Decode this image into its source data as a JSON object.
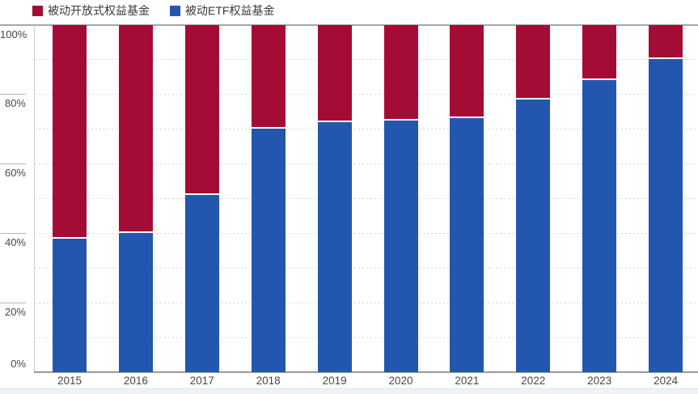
{
  "legend": {
    "items": [
      {
        "id": "open",
        "label": "被动开放式权益基金",
        "color": "#A50C35"
      },
      {
        "id": "etf",
        "label": "被动ETF权益基金",
        "color": "#2356AE"
      }
    ]
  },
  "y_axis": {
    "ticks": [
      {
        "label": "100%",
        "value": 100
      },
      {
        "label": "80%",
        "value": 80
      },
      {
        "label": "60%",
        "value": 60
      },
      {
        "label": "40%",
        "value": 40
      },
      {
        "label": "20%",
        "value": 20
      },
      {
        "label": "0%",
        "value": 0
      }
    ]
  },
  "chart_data": {
    "type": "bar",
    "stacked": true,
    "stack_total": 100,
    "title": "",
    "xlabel": "",
    "ylabel": "",
    "ylim": [
      0,
      100
    ],
    "grid": "dotted horizontal lines every 10%",
    "legend_position": "top-left",
    "categories": [
      "2015",
      "2016",
      "2017",
      "2018",
      "2019",
      "2020",
      "2021",
      "2022",
      "2023",
      "2024"
    ],
    "series": [
      {
        "id": "etf",
        "name": "被动ETF权益基金",
        "color": "#2356AE",
        "stack_position": "bottom",
        "values": [
          38.5,
          40,
          51,
          70,
          72,
          72.5,
          73,
          78.5,
          84,
          90
        ]
      },
      {
        "id": "open",
        "name": "被动开放式权益基金",
        "color": "#A50C35",
        "stack_position": "top",
        "values": [
          61.5,
          60,
          49,
          30,
          28,
          27.5,
          27,
          21.5,
          16,
          10
        ]
      }
    ]
  },
  "colors": {
    "etf_blue": "#2356AE",
    "open_red": "#A50C35",
    "axis_line": "#9a9a9a",
    "tick_line": "#b5b5b5",
    "grid_dots": "#d6d6d6",
    "label_text": "#474747",
    "legend_text": "#3a3a3a"
  }
}
